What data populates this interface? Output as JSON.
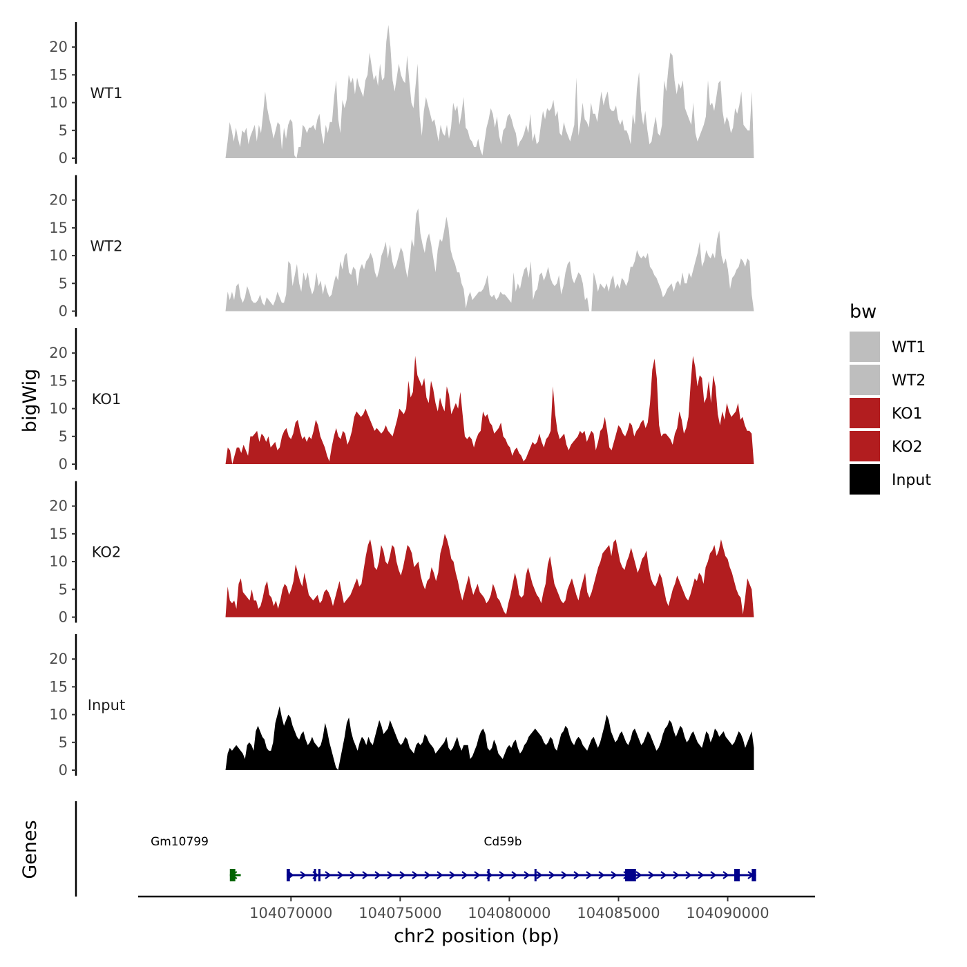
{
  "chart_data": {
    "type": "area",
    "ylabel": "bigWig",
    "xlabel": "chr2 position (bp)",
    "ylim": [
      0,
      24
    ],
    "xlim": [
      104063000,
      104094000
    ],
    "y_ticks": [
      "0",
      "5",
      "10",
      "15",
      "20"
    ],
    "x_ticks": [
      {
        "value": 104070000,
        "label": "104070000"
      },
      {
        "value": 104075000,
        "label": "104075000"
      },
      {
        "value": 104080000,
        "label": "104080000"
      },
      {
        "value": 104085000,
        "label": "104085000"
      },
      {
        "value": 104090000,
        "label": "104090000"
      }
    ],
    "x_start": 104067000,
    "x_end": 104091200,
    "series": [
      {
        "name": "WT1",
        "color": "#bebebe",
        "values": [
          0,
          3,
          6.5,
          5,
          3,
          5.5,
          3.5,
          2,
          5,
          4.5,
          5.5,
          2.5,
          4,
          5,
          6,
          3,
          6,
          4.5,
          8,
          12,
          9,
          7,
          5.5,
          3.5,
          5,
          6.5,
          6,
          1.5,
          5.5,
          3.5,
          6,
          7,
          6.5,
          0.5,
          0,
          2,
          2,
          6,
          5.5,
          4.5,
          5.5,
          5.5,
          6,
          5,
          7,
          8,
          4.5,
          2.5,
          6,
          4.5,
          6.5,
          6.5,
          11,
          14,
          7,
          4.5,
          10.5,
          9,
          10.5,
          15,
          13.5,
          14.5,
          11.5,
          14.5,
          13,
          12,
          11,
          14,
          15,
          19,
          16.5,
          14,
          15,
          13,
          17,
          14,
          14.5,
          21,
          24,
          20,
          14,
          12,
          14.5,
          17,
          15,
          14,
          13.5,
          18.5,
          14,
          10,
          9,
          13,
          17,
          7.5,
          4,
          8.5,
          11,
          9.5,
          8,
          6.5,
          7,
          5,
          3,
          6,
          4.5,
          4,
          6,
          3.5,
          5.5,
          10,
          8.5,
          9.5,
          6,
          8,
          11,
          5.5,
          5,
          3.5,
          3,
          2,
          2,
          3.5,
          1.5,
          0.5,
          3,
          5.5,
          7,
          9,
          8,
          5.5,
          7.5,
          4,
          2.5,
          5,
          5.5,
          7.5,
          8,
          7,
          5.5,
          4.5,
          2,
          3,
          3.5,
          4.5,
          6,
          4.5,
          8,
          3,
          4.5,
          2.5,
          3,
          6,
          8.5,
          7,
          9,
          8.5,
          9,
          10.5,
          7.5,
          8.5,
          4.5,
          4,
          6.5,
          5,
          4,
          3,
          4.5,
          6,
          14.5,
          4,
          6.5,
          10,
          7,
          6.5,
          5.5,
          10,
          8,
          8,
          6.5,
          9.5,
          12,
          9.5,
          11,
          12,
          9,
          8.5,
          8.5,
          9.5,
          7,
          6,
          7,
          5,
          5,
          4,
          2.5,
          8,
          6,
          12.5,
          15.5,
          8.5,
          6,
          8.5,
          5,
          2.5,
          3,
          5.5,
          7.5,
          4.5,
          4,
          6,
          14,
          12,
          16,
          19,
          18.5,
          14,
          11.5,
          13.5,
          12.5,
          14,
          9,
          8,
          7,
          6,
          10,
          4.5,
          3,
          4,
          5,
          6,
          7.5,
          14,
          9.5,
          10,
          8.5,
          11,
          13.5,
          14,
          8.5,
          6,
          7.5,
          6.5,
          4.5,
          5.5,
          9,
          8,
          9.5,
          12,
          6,
          5.5,
          5,
          5,
          12,
          0
        ]
      },
      {
        "name": "WT2",
        "color": "#bebebe",
        "values": [
          0,
          3.5,
          2,
          3.5,
          2,
          4.5,
          5,
          2.5,
          1.5,
          2.5,
          4.5,
          3.5,
          2,
          1.5,
          1.5,
          2,
          3,
          1.5,
          1,
          2.5,
          2,
          1.5,
          1,
          2,
          3.5,
          2.5,
          1.5,
          1.5,
          3,
          9,
          8.5,
          4.5,
          6.5,
          8.5,
          5,
          3.5,
          7,
          5.5,
          7,
          4.5,
          3,
          4,
          7,
          4.5,
          5.5,
          3,
          5,
          3.5,
          2.5,
          3,
          5,
          6.5,
          5.5,
          9,
          7.5,
          10,
          10.5,
          7,
          6.5,
          8,
          7.5,
          4.5,
          7.5,
          8.5,
          7.5,
          9,
          9.5,
          10.5,
          9.5,
          7,
          6,
          7.5,
          10,
          11,
          12.5,
          9.5,
          12,
          9,
          7.5,
          8.5,
          10,
          11.5,
          10.5,
          8,
          6,
          9,
          13,
          11.5,
          17.5,
          18.5,
          14,
          12,
          10.5,
          13,
          14,
          12,
          9.5,
          7,
          11,
          13,
          12.5,
          14.5,
          17,
          15,
          11,
          9.5,
          8.5,
          7,
          7,
          5,
          4,
          0.5,
          2.5,
          3.5,
          2,
          2.5,
          3,
          3.5,
          3.5,
          4,
          5,
          6.5,
          3,
          2.5,
          3,
          2,
          2.5,
          3.5,
          3,
          3,
          2.5,
          2,
          1.5,
          7,
          3.5,
          5,
          4,
          6,
          7.5,
          8,
          6,
          9,
          2,
          3.5,
          4,
          6.5,
          7,
          5.5,
          6.5,
          8,
          6,
          5,
          4.5,
          5,
          6.5,
          3,
          4.5,
          7,
          8.5,
          9,
          6,
          5,
          6,
          7,
          6.5,
          5,
          2,
          2.5,
          0,
          0,
          7,
          5.5,
          3.5,
          5,
          4.5,
          4,
          5,
          3.5,
          5.5,
          6.5,
          4,
          5,
          4,
          6,
          5.5,
          4.5,
          5.5,
          8,
          8,
          9,
          11,
          10,
          9.5,
          10,
          9.5,
          10.5,
          8,
          7.5,
          6.5,
          6,
          5,
          4,
          2.5,
          3,
          4,
          4.5,
          5,
          3.5,
          5,
          5.5,
          4.5,
          7,
          5,
          5,
          7,
          6,
          7.5,
          9,
          10.5,
          12.5,
          8,
          9,
          11,
          10,
          9.5,
          10.5,
          9.5,
          13,
          14.5,
          10,
          8.5,
          9.5,
          7.5,
          4,
          6,
          6.5,
          7.5,
          8,
          9.5,
          9,
          8,
          9.5,
          9,
          3,
          0
        ]
      },
      {
        "name": "KO1",
        "color": "#b21d1f",
        "values": [
          0,
          3,
          2.5,
          0,
          1.5,
          3,
          3,
          2,
          3.5,
          2.5,
          1.5,
          5,
          5,
          5.5,
          6,
          4,
          5.5,
          5,
          4,
          5,
          3,
          3.5,
          4,
          2.5,
          3,
          5,
          6,
          6.5,
          5,
          4.5,
          5.5,
          7.5,
          8,
          6,
          4.5,
          5,
          4,
          5,
          4.5,
          6,
          8,
          7,
          5,
          4,
          3,
          1.5,
          0.5,
          3,
          5,
          6.5,
          5,
          4.5,
          6,
          5.5,
          3.5,
          4.5,
          6,
          8.5,
          9.5,
          9,
          8.5,
          9,
          10,
          9,
          8,
          7,
          6,
          6.5,
          6,
          5.5,
          6,
          7,
          6,
          5.5,
          5,
          6.5,
          8,
          10,
          9.5,
          9,
          10,
          15,
          12,
          13,
          19.5,
          16,
          15,
          14,
          15.5,
          12,
          11,
          15,
          13.5,
          11,
          9.5,
          12,
          10.5,
          9.5,
          14,
          12.5,
          9,
          10,
          11,
          10,
          13,
          9,
          5,
          4.5,
          5,
          4.5,
          3,
          4.5,
          5.5,
          6,
          9.5,
          8.5,
          9,
          7.5,
          7,
          5.5,
          6,
          6.5,
          7.5,
          5,
          4.5,
          3.5,
          3,
          1.5,
          2.5,
          3,
          2,
          1.5,
          0.5,
          1,
          2,
          3,
          4,
          3.5,
          4,
          5.5,
          4,
          3,
          4.5,
          5,
          6,
          14,
          9,
          6,
          4.5,
          5,
          5.5,
          3.5,
          2.5,
          3.5,
          4,
          4.5,
          5,
          6,
          5.5,
          6,
          4,
          5,
          6,
          5.5,
          2.5,
          4,
          6,
          6.5,
          8.5,
          6,
          3,
          2.5,
          4,
          5.5,
          7,
          6.5,
          5.5,
          5,
          6,
          7.5,
          7,
          5,
          6,
          6.5,
          7.5,
          8,
          6.5,
          7.5,
          11,
          17,
          19,
          15.5,
          7,
          5,
          5.5,
          5.5,
          5,
          4.5,
          3.5,
          5.5,
          6.5,
          9.5,
          8,
          5.5,
          6.5,
          8.5,
          14.5,
          19.5,
          17.5,
          14,
          16,
          15.5,
          11,
          12,
          15,
          11,
          16,
          14,
          9,
          7,
          9.5,
          8,
          11,
          9.5,
          8.5,
          9,
          9.5,
          11,
          8,
          8.5,
          7,
          6,
          6,
          5.5,
          0
        ]
      },
      {
        "name": "KO2",
        "color": "#b21d1f",
        "values": [
          0,
          5.5,
          3,
          2.5,
          3,
          1.5,
          6,
          7,
          4.5,
          4,
          3.5,
          3,
          5,
          3,
          3,
          1.5,
          2,
          3.5,
          5.5,
          6.5,
          4,
          3.5,
          2,
          3,
          1.5,
          3,
          5,
          6,
          5.5,
          4,
          5,
          6.5,
          9.5,
          8,
          6.5,
          5.5,
          8,
          6,
          4,
          3.5,
          3,
          3.5,
          4,
          2.5,
          3,
          4.5,
          5,
          4.5,
          3.5,
          2,
          3.5,
          5,
          6.5,
          4.5,
          2.5,
          3,
          3.5,
          4,
          5,
          6,
          7,
          5.5,
          6,
          8.5,
          11,
          13,
          14,
          12,
          9,
          8.5,
          10,
          13,
          12,
          10,
          9.5,
          11,
          13,
          12.5,
          10,
          8.5,
          7.5,
          9,
          11,
          13,
          12.5,
          11.5,
          9,
          9.5,
          10,
          7.5,
          6,
          5,
          6.5,
          7,
          9,
          8,
          6.5,
          8,
          11.5,
          13,
          15,
          14,
          12.5,
          10.5,
          10,
          8,
          6.5,
          4.5,
          3,
          4.5,
          6,
          7.5,
          5.5,
          4,
          5,
          6,
          4.5,
          4,
          3.5,
          2.5,
          3,
          4,
          6,
          5,
          3.5,
          3,
          2,
          1,
          0.5,
          2.5,
          4,
          6,
          8,
          6.5,
          4,
          3.5,
          4,
          7.5,
          9,
          7.5,
          6,
          5,
          4,
          3.5,
          2.5,
          4.5,
          6,
          9.5,
          11,
          8.5,
          6,
          5,
          4,
          3,
          2.5,
          3,
          5,
          6,
          7,
          5.5,
          4,
          3,
          5,
          6.5,
          8,
          4.5,
          3.5,
          4.5,
          6,
          7.5,
          9,
          10,
          11.5,
          12,
          12.5,
          13,
          11,
          13.5,
          14,
          12,
          10,
          9,
          8.5,
          10,
          11,
          12.5,
          11,
          9.5,
          8,
          9,
          10.5,
          11,
          12,
          9,
          7,
          6,
          5.5,
          6.5,
          8,
          7,
          5,
          3,
          2,
          3.5,
          5,
          6,
          7.5,
          6.5,
          5.5,
          4.5,
          3.5,
          3,
          4,
          5.5,
          7,
          6.5,
          8,
          7.5,
          6,
          9,
          10,
          11.5,
          12,
          13,
          11,
          12,
          14,
          12.5,
          11,
          10.5,
          9,
          8,
          6.5,
          5,
          4,
          3.5,
          0.5,
          3.5,
          7,
          6,
          5,
          0
        ]
      },
      {
        "name": "Input",
        "color": "#000000",
        "values": [
          0,
          3,
          4,
          3.5,
          4,
          4.5,
          4,
          3.5,
          3,
          2,
          4.5,
          5,
          4.5,
          3.5,
          7,
          8,
          7,
          6,
          5.5,
          4,
          3.5,
          3.5,
          5,
          8.5,
          10,
          11.5,
          9.5,
          8,
          9,
          10,
          9.5,
          8,
          7,
          6,
          5.5,
          6.5,
          7,
          5.5,
          4.5,
          5,
          6,
          5,
          4.5,
          4,
          4.5,
          6,
          8.5,
          7,
          5,
          3.5,
          2,
          0.5,
          0,
          2,
          4,
          6,
          8.5,
          9.5,
          7,
          5.5,
          4.5,
          3.5,
          5,
          6,
          5.5,
          4.5,
          6,
          5,
          4.5,
          6,
          7.5,
          9,
          8,
          6.5,
          7,
          7.5,
          9,
          8,
          7,
          6,
          5,
          4.5,
          5,
          6,
          5.5,
          4,
          3.5,
          3,
          4.5,
          5,
          4.5,
          5,
          6.5,
          6,
          5,
          4.5,
          4,
          3,
          3.5,
          4,
          4.5,
          5,
          6,
          4,
          3.5,
          4,
          5,
          6,
          4.5,
          3.5,
          4.5,
          4.5,
          4.5,
          2,
          2.5,
          3.5,
          4.5,
          6,
          7,
          7.5,
          6.5,
          4,
          3.5,
          4,
          5.5,
          4.5,
          3,
          2.5,
          2,
          3,
          4,
          4.5,
          4,
          5,
          5.5,
          4,
          3,
          3.5,
          4.5,
          5,
          6,
          6.5,
          7,
          7.5,
          7,
          6.5,
          6,
          5,
          4.5,
          5,
          6,
          5.5,
          4,
          3.5,
          5,
          6.5,
          7,
          8,
          7.5,
          6,
          5,
          4.5,
          5.5,
          6,
          5.5,
          4.5,
          4,
          3.5,
          4.5,
          5.5,
          6,
          5,
          4,
          5,
          6.5,
          8,
          10,
          9,
          7,
          6,
          5,
          5.5,
          6.5,
          7,
          6,
          5,
          4.5,
          5.5,
          7,
          7.5,
          6.5,
          5.5,
          4.5,
          5,
          6,
          7,
          6.5,
          5.5,
          4.5,
          3.5,
          4,
          5,
          6.5,
          7.5,
          8,
          9,
          8.5,
          7,
          6,
          7,
          8,
          7.5,
          6,
          5,
          5.5,
          6.5,
          7,
          6,
          5,
          4.5,
          4,
          5.5,
          7,
          6.5,
          5,
          6,
          7.5,
          7,
          6,
          6.5,
          7,
          6,
          5.5,
          5,
          4.5,
          5,
          6,
          7,
          6.5,
          5.5,
          4,
          5,
          6,
          7,
          4
        ]
      }
    ],
    "legend": {
      "title": "bw",
      "items": [
        {
          "label": "WT1",
          "color": "#bebebe"
        },
        {
          "label": "WT2",
          "color": "#bebebe"
        },
        {
          "label": "KO1",
          "color": "#b21d1f"
        },
        {
          "label": "KO2",
          "color": "#b21d1f"
        },
        {
          "label": "Input",
          "color": "#000000"
        }
      ]
    },
    "genes_track": {
      "label": "Genes",
      "genes": [
        {
          "name": "Gm10799",
          "start": 104067200,
          "end": 104067700,
          "strand": "-",
          "color": "#006400",
          "exons": [
            [
              104067200,
              104067450
            ]
          ]
        },
        {
          "name": "Cd59b",
          "start": 104069800,
          "end": 104091300,
          "strand": "+",
          "color": "#00008b",
          "exons": [
            [
              104069800,
              104069950
            ],
            [
              104071050,
              104071150
            ],
            [
              104071250,
              104071350
            ],
            [
              104079000,
              104079050
            ],
            [
              104081150,
              104081200
            ],
            [
              104085300,
              104085800
            ],
            [
              104090300,
              104090550
            ],
            [
              104091100,
              104091300
            ]
          ]
        }
      ]
    }
  }
}
